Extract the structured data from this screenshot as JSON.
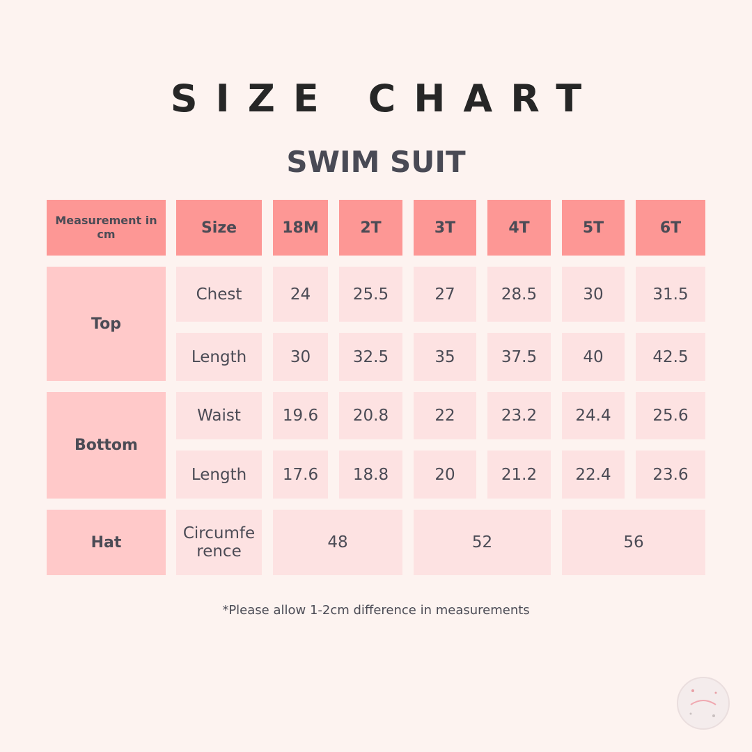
{
  "header": {
    "title": "SIZE CHART",
    "subtitle": "SWIM SUIT"
  },
  "table": {
    "columns": [
      "Measurement in cm",
      "Size",
      "18M",
      "2T",
      "3T",
      "4T",
      "5T",
      "6T"
    ],
    "groups": [
      {
        "label": "Top",
        "rows": [
          {
            "label": "Chest",
            "values": [
              24,
              25.5,
              27,
              28.5,
              30,
              31.5
            ]
          },
          {
            "label": "Length",
            "values": [
              30,
              32.5,
              35,
              37.5,
              40,
              42.5
            ]
          }
        ]
      },
      {
        "label": "Bottom",
        "rows": [
          {
            "label": "Waist",
            "values": [
              19.6,
              20.8,
              22,
              23.2,
              24.4,
              25.6
            ]
          },
          {
            "label": "Length",
            "values": [
              17.6,
              18.8,
              20,
              21.2,
              22.4,
              23.6
            ]
          }
        ]
      },
      {
        "label": "Hat",
        "rows": [
          {
            "label": "Circumference",
            "values": [
              48,
              52,
              56
            ]
          }
        ]
      }
    ]
  },
  "note": "*Please allow 1-2cm difference in measurements"
}
